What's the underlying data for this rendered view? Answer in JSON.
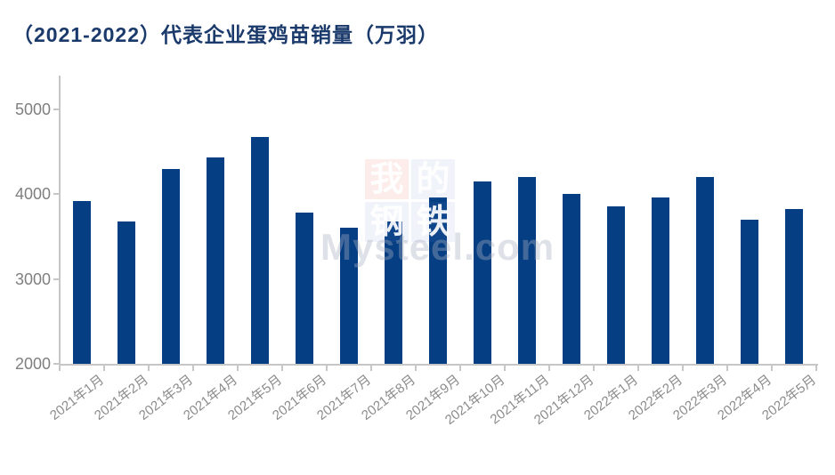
{
  "chart_data": {
    "type": "bar",
    "title": "（2021-2022）代表企业蛋鸡苗销量（万羽）",
    "categories": [
      "2021年1月",
      "2021年2月",
      "2021年3月",
      "2021年4月",
      "2021年5月",
      "2021年6月",
      "2021年7月",
      "2021年8月",
      "2021年9月",
      "2021年10月",
      "2021年11月",
      "2021年12月",
      "2022年1月",
      "2022年2月",
      "2022年3月",
      "2022年4月",
      "2022年5月"
    ],
    "values": [
      3920,
      3680,
      4300,
      4430,
      4670,
      3780,
      3600,
      3680,
      3960,
      4150,
      4200,
      4000,
      3860,
      3960,
      4200,
      3700,
      3820
    ],
    "xlabel": "",
    "ylabel": "",
    "ylim": [
      2000,
      5000
    ],
    "yticks": [
      2000,
      3000,
      4000,
      5000
    ],
    "grid": false,
    "legend": null,
    "bar_color": "#053e83"
  },
  "colors": {
    "title": "#1b3a6c",
    "axis": "#c6c6c6",
    "tick_label": "#7f7f7f",
    "watermark_tile_red_bg": "rgba(235,105,90,0.13)",
    "watermark_tile_blue_bg": "rgba(110,140,210,0.10)"
  },
  "watermark": {
    "tiles": [
      {
        "char": "我",
        "variant": "red"
      },
      {
        "char": "的",
        "variant": "blue"
      },
      {
        "char": "钢",
        "variant": "blue"
      },
      {
        "char": "铁",
        "variant": "blue"
      }
    ],
    "text": "Mysteel.com"
  }
}
